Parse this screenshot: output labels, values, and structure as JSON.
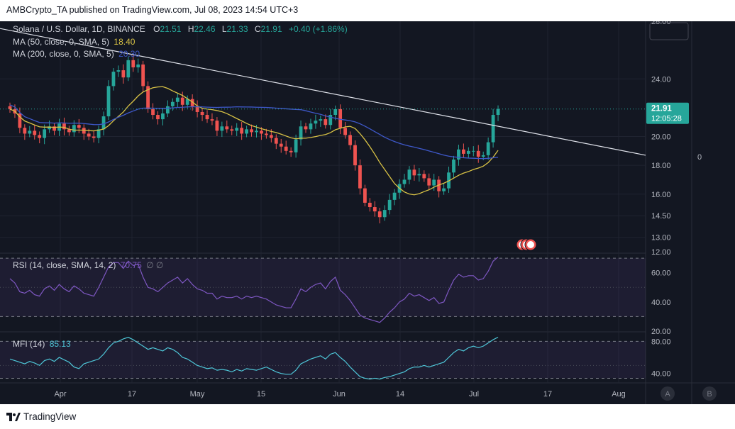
{
  "header": {
    "text": "AMBCrypto_TA published on TradingView.com, Jul 08, 2023 14:54 UTC+3"
  },
  "footer": {
    "brand": "TradingView"
  },
  "legend": {
    "symbol": "Solana / U.S. Dollar, 1D, BINANCE",
    "o_label": "O",
    "o_value": "21.51",
    "h_label": "H",
    "h_value": "22.46",
    "l_label": "L",
    "l_value": "21.33",
    "c_label": "C",
    "c_value": "21.91",
    "change": "+0.40 (+1.86%)",
    "ma50_label": "MA (50, close, 0, SMA, 5)",
    "ma50_value": "18.40",
    "ma200_label": "MA (200, close, 0, SMA, 5)",
    "ma200_value": "20.30",
    "rsi_label": "RSI (14, close, SMA, 14, 2)",
    "rsi_value": "70.75",
    "rsi_extra": "∅ ∅",
    "mfi_label": "MFI (14)",
    "mfi_value": "85.13"
  },
  "price_badge": {
    "price": "21.91",
    "countdown": "12:05:28"
  },
  "side_value": "0",
  "axis_buttons": [
    "A",
    "B"
  ],
  "colors": {
    "background": "#131722",
    "up": "#26a69a",
    "down": "#ef5350",
    "ma50": "#d8c245",
    "ma200": "#3e58c9",
    "rsi": "#7e57c2",
    "mfi": "#4ec6d7",
    "trendline": "#e0e3eb",
    "grid": "#1f2330",
    "axis_text": "#b2b5be"
  },
  "chart_data": [
    {
      "type": "candlestick",
      "title": "Solana / U.S. Dollar, 1D, BINANCE",
      "ylim": [
        12,
        28
      ],
      "y_ticks": [
        "28.00",
        "24.00",
        "20.00",
        "18.00",
        "16.00",
        "14.50",
        "13.00",
        "12.00"
      ],
      "x_ticks": [
        "Apr",
        "17",
        "May",
        "15",
        "Jun",
        "14",
        "Jul",
        "17",
        "Aug"
      ],
      "closes": [
        21.9,
        21.6,
        20.6,
        20.2,
        20.4,
        20.1,
        19.9,
        20.5,
        20.7,
        20.4,
        20.9,
        20.5,
        20.3,
        20.8,
        20.6,
        20.2,
        20.0,
        19.9,
        20.5,
        21.4,
        23.5,
        24.5,
        24.6,
        24.1,
        25.3,
        24.8,
        25.0,
        23.5,
        21.9,
        21.5,
        21.2,
        21.6,
        22.1,
        22.4,
        22.7,
        22.2,
        22.6,
        22.1,
        21.7,
        21.5,
        21.2,
        21.1,
        20.4,
        20.7,
        20.5,
        20.4,
        20.6,
        20.2,
        20.5,
        20.3,
        20.4,
        20.2,
        20.1,
        19.9,
        19.5,
        19.3,
        19.0,
        18.9,
        19.8,
        20.7,
        20.5,
        20.9,
        21.1,
        21.2,
        20.8,
        21.5,
        21.9,
        20.6,
        20.1,
        19.4,
        18.0,
        16.4,
        15.4,
        15.1,
        14.8,
        14.4,
        14.9,
        15.6,
        16.1,
        16.7,
        17.0,
        17.7,
        17.3,
        17.4,
        17.1,
        16.6,
        17.0,
        16.2,
        16.4,
        17.5,
        18.4,
        19.1,
        18.8,
        19.0,
        19.0,
        18.6,
        18.7,
        19.6,
        21.5,
        21.91
      ],
      "ma50_label": "MA (50, close, 0, SMA, 5)",
      "ma50_last": 18.4,
      "ma200_label": "MA (200, close, 0, SMA, 5)",
      "ma200_last": 20.3,
      "trendline": {
        "start": 27.5,
        "end": 18.7
      }
    },
    {
      "type": "line",
      "title": "RSI (14, close, SMA, 14, 2)",
      "ylim": [
        20,
        72
      ],
      "y_ticks": [
        "80.00",
        "60.00",
        "40.00",
        "20.00"
      ],
      "bands": [
        70,
        30
      ],
      "values": [
        56,
        53,
        47,
        46,
        48,
        45,
        44,
        49,
        51,
        48,
        52,
        49,
        47,
        51,
        49,
        46,
        45,
        44,
        50,
        57,
        64,
        67,
        67,
        63,
        68,
        65,
        66,
        57,
        50,
        49,
        47,
        50,
        53,
        55,
        57,
        53,
        56,
        52,
        49,
        48,
        46,
        46,
        42,
        44,
        43,
        43,
        44,
        42,
        44,
        43,
        44,
        43,
        42,
        40,
        38,
        37,
        36,
        36,
        42,
        49,
        47,
        50,
        52,
        53,
        49,
        54,
        57,
        48,
        45,
        41,
        36,
        31,
        29,
        28,
        27,
        26,
        29,
        33,
        36,
        40,
        42,
        46,
        44,
        45,
        43,
        41,
        43,
        39,
        40,
        48,
        55,
        59,
        57,
        58,
        58,
        55,
        56,
        61,
        68,
        70.75
      ],
      "last": 70.75
    },
    {
      "type": "line",
      "title": "MFI (14)",
      "ylim": [
        30,
        90
      ],
      "y_ticks": [
        "80.00",
        "40.00"
      ],
      "bands": [
        80,
        20
      ],
      "values": [
        58,
        56,
        54,
        52,
        55,
        53,
        50,
        56,
        58,
        55,
        60,
        57,
        54,
        48,
        46,
        52,
        54,
        56,
        58,
        64,
        72,
        78,
        80,
        83,
        85,
        82,
        78,
        74,
        70,
        72,
        70,
        68,
        72,
        70,
        66,
        60,
        58,
        54,
        50,
        48,
        46,
        47,
        44,
        45,
        44,
        42,
        45,
        43,
        46,
        45,
        44,
        46,
        48,
        45,
        42,
        40,
        39,
        39,
        44,
        52,
        55,
        58,
        60,
        62,
        58,
        64,
        66,
        60,
        55,
        48,
        42,
        36,
        34,
        33,
        34,
        33,
        35,
        36,
        38,
        40,
        42,
        46,
        48,
        48,
        50,
        48,
        50,
        52,
        54,
        60,
        66,
        70,
        68,
        72,
        74,
        72,
        74,
        78,
        82,
        85.13
      ],
      "last": 85.13
    }
  ]
}
